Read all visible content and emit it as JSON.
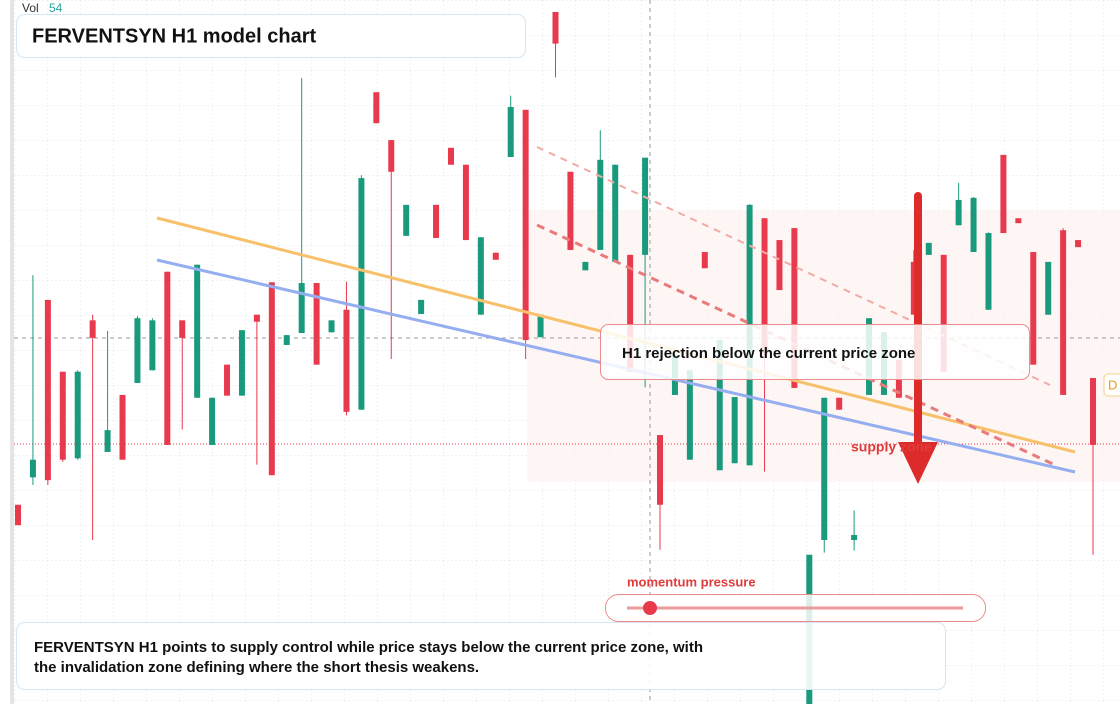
{
  "header": {
    "volume_label": "Vol",
    "volume_value": 54,
    "title": "FERVENTSYN H1 model chart"
  },
  "callout": "H1 rejection below the current price zone",
  "zone_label": "supply zone",
  "momentum_label": "momentum pressure",
  "edge_marker": "D",
  "description": [
    "FERVENTSYN H1 points to supply control while price stays below the current price zone, with",
    "the invalidation zone defining where the short thesis weakens."
  ],
  "chart_data": {
    "type": "candlestick",
    "ylim": [
      0,
      100
    ],
    "up_color": "#1a9a7c",
    "down_color": "#e8394d",
    "ohlc": [
      [
        28.3,
        28.3,
        25.4,
        25.4
      ],
      [
        32.2,
        60.9,
        31.1,
        34.7
      ],
      [
        57.4,
        57.4,
        31.1,
        31.8
      ],
      [
        47.2,
        47.2,
        34.4,
        34.7
      ],
      [
        34.9,
        47.4,
        34.7,
        47.2
      ],
      [
        54.5,
        55.3,
        23.3,
        52.0
      ],
      [
        35.8,
        53.0,
        35.8,
        38.9
      ],
      [
        43.9,
        43.9,
        34.7,
        34.7
      ],
      [
        45.6,
        55.1,
        45.6,
        54.8
      ],
      [
        47.4,
        54.8,
        47.4,
        54.5
      ],
      [
        61.4,
        61.4,
        36.8,
        36.8
      ],
      [
        54.5,
        54.5,
        39.0,
        52.0
      ],
      [
        43.5,
        62.4,
        43.5,
        62.4
      ],
      [
        36.8,
        43.5,
        36.8,
        43.5
      ],
      [
        48.2,
        48.2,
        43.8,
        43.8
      ],
      [
        43.8,
        53.1,
        43.8,
        53.1
      ],
      [
        55.3,
        55.3,
        34.0,
        54.3
      ],
      [
        59.9,
        59.9,
        32.5,
        32.5
      ],
      [
        51.0,
        52.4,
        51.0,
        52.4
      ],
      [
        52.7,
        88.9,
        52.7,
        59.8
      ],
      [
        59.8,
        59.8,
        48.2,
        48.2
      ],
      [
        52.8,
        54.5,
        52.8,
        54.5
      ],
      [
        56.0,
        60.0,
        41.0,
        41.5
      ],
      [
        41.8,
        75.1,
        41.8,
        74.7
      ],
      [
        86.9,
        86.9,
        82.5,
        82.5
      ],
      [
        80.1,
        80.1,
        49.0,
        75.6
      ],
      [
        66.5,
        70.9,
        66.5,
        70.9
      ],
      [
        55.4,
        57.4,
        55.4,
        57.4
      ],
      [
        70.9,
        70.9,
        66.2,
        66.2
      ],
      [
        79.0,
        79.0,
        76.6,
        76.6
      ],
      [
        76.6,
        76.6,
        65.9,
        65.9
      ],
      [
        55.3,
        66.3,
        55.3,
        66.3
      ],
      [
        64.1,
        64.1,
        63.1,
        63.1
      ],
      [
        77.7,
        86.4,
        77.7,
        84.8
      ],
      [
        84.4,
        84.4,
        49.0,
        51.7
      ],
      [
        52.1,
        55.3,
        52.1,
        55.3
      ],
      [
        98.3,
        98.3,
        89.0,
        93.8
      ],
      [
        75.6,
        75.6,
        64.5,
        64.5
      ],
      [
        61.6,
        62.8,
        61.6,
        62.8
      ],
      [
        64.5,
        81.5,
        64.5,
        77.3
      ],
      [
        62.8,
        76.6,
        62.8,
        76.6
      ],
      [
        63.8,
        63.8,
        47.2,
        47.2
      ],
      [
        63.8,
        77.6,
        45.0,
        77.6
      ],
      [
        38.2,
        38.2,
        21.9,
        28.3
      ],
      [
        43.9,
        49.6,
        43.9,
        49.6
      ],
      [
        34.7,
        47.4,
        34.7,
        47.4
      ],
      [
        64.2,
        64.2,
        61.9,
        61.9
      ],
      [
        33.2,
        51.7,
        33.2,
        51.7
      ],
      [
        34.2,
        43.6,
        34.2,
        43.6
      ],
      [
        33.9,
        71.0,
        33.9,
        70.9
      ],
      [
        69.0,
        69.0,
        33.0,
        49.6
      ],
      [
        65.9,
        65.9,
        58.8,
        58.8
      ],
      [
        67.6,
        67.6,
        44.9,
        44.9
      ],
      [
        0,
        21.2,
        0,
        21.2
      ],
      [
        23.3,
        43.5,
        21.5,
        43.5
      ],
      [
        43.5,
        43.5,
        41.8,
        41.8
      ],
      [
        23.3,
        27.5,
        21.8,
        24.0
      ],
      [
        43.9,
        54.8,
        43.9,
        54.8
      ],
      [
        43.9,
        52.8,
        43.9,
        52.8
      ],
      [
        48.9,
        48.9,
        43.5,
        43.5
      ],
      [
        62.8,
        64.5,
        55.3,
        55.3
      ],
      [
        63.8,
        65.5,
        63.8,
        65.5
      ],
      [
        63.8,
        63.8,
        47.2,
        47.2
      ],
      [
        68.0,
        74.0,
        68.0,
        71.6
      ],
      [
        64.2,
        72.0,
        64.2,
        71.9
      ],
      [
        56.0,
        67.0,
        56.0,
        66.9
      ],
      [
        78.0,
        78.0,
        66.9,
        66.9
      ],
      [
        69.0,
        69.0,
        68.3,
        68.3
      ],
      [
        64.2,
        64.2,
        48.2,
        48.2
      ],
      [
        55.3,
        62.8,
        55.3,
        62.8
      ],
      [
        67.3,
        67.6,
        43.9,
        43.9
      ],
      [
        65.9,
        65.9,
        64.9,
        64.9
      ],
      [
        46.3,
        46.3,
        21.2,
        36.8
      ]
    ]
  }
}
